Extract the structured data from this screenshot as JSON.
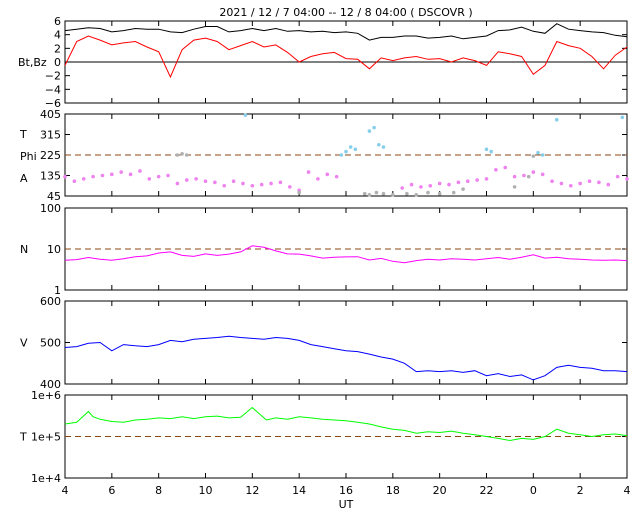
{
  "title": "2021 / 12 /  7   04:00 -- 12 /  8   04:00 ( DSCOVR )",
  "xlabel": "UT",
  "x_ticks": [
    {
      "hour": 4,
      "label": "4"
    },
    {
      "hour": 6,
      "label": "6"
    },
    {
      "hour": 8,
      "label": "8"
    },
    {
      "hour": 10,
      "label": "10"
    },
    {
      "hour": 12,
      "label": "12"
    },
    {
      "hour": 14,
      "label": "14"
    },
    {
      "hour": 16,
      "label": "16"
    },
    {
      "hour": 18,
      "label": "18"
    },
    {
      "hour": 20,
      "label": "20"
    },
    {
      "hour": 22,
      "label": "22"
    },
    {
      "hour": 24,
      "label": "0"
    },
    {
      "hour": 26,
      "label": "2"
    },
    {
      "hour": 28,
      "label": "4"
    }
  ],
  "chart_data": [
    {
      "type": "line",
      "ylabel": "Bt,Bz",
      "ylim": [
        -6,
        6
      ],
      "y_ticks": [
        {
          "v": 6,
          "label": "6"
        },
        {
          "v": 4,
          "label": "4"
        },
        {
          "v": 2,
          "label": "2"
        },
        {
          "v": 0,
          "label": "0"
        },
        {
          "v": -2,
          "label": "−2"
        },
        {
          "v": -4,
          "label": "−4"
        },
        {
          "v": -6,
          "label": "−6"
        }
      ],
      "reference_line": {
        "v": 0,
        "style": "solid",
        "color": "#000000"
      },
      "series": [
        {
          "color": "#000000",
          "x": [
            4,
            4.5,
            5,
            5.5,
            6,
            6.5,
            7,
            7.5,
            8,
            8.5,
            9,
            9.5,
            10,
            10.5,
            11,
            11.5,
            12,
            12.5,
            13,
            13.5,
            14,
            14.5,
            15,
            15.5,
            16,
            16.5,
            17,
            17.5,
            18,
            18.5,
            19,
            19.5,
            20,
            20.5,
            21,
            21.5,
            22,
            22.5,
            23,
            23.5,
            24,
            24.5,
            25,
            25.5,
            26,
            26.5,
            27,
            27.5,
            28
          ],
          "y": [
            4.6,
            4.8,
            5.0,
            4.9,
            4.4,
            4.6,
            4.9,
            4.8,
            4.8,
            4.4,
            4.3,
            4.8,
            5.2,
            5.2,
            4.4,
            4.6,
            4.9,
            4.6,
            4.9,
            4.5,
            4.6,
            4.4,
            4.5,
            4.3,
            4.4,
            4.2,
            3.2,
            3.6,
            3.6,
            3.8,
            3.8,
            3.5,
            3.6,
            3.8,
            3.4,
            3.6,
            3.8,
            4.6,
            4.7,
            5.1,
            4.5,
            4.2,
            5.6,
            4.8,
            4.6,
            4.4,
            4.3,
            3.9,
            3.7
          ]
        },
        {
          "color": "#ff0000",
          "x": [
            4,
            4.5,
            5,
            5.5,
            6,
            6.5,
            7,
            7.5,
            8,
            8.5,
            9,
            9.5,
            10,
            10.5,
            11,
            11.5,
            12,
            12.5,
            13,
            13.5,
            14,
            14.5,
            15,
            15.5,
            16,
            16.5,
            17,
            17.5,
            18,
            18.5,
            19,
            19.5,
            20,
            20.5,
            21,
            21.5,
            22,
            22.5,
            23,
            23.5,
            24,
            24.5,
            25,
            25.5,
            26,
            26.5,
            27,
            27.5,
            28
          ],
          "y": [
            -0.5,
            3.0,
            3.8,
            3.2,
            2.5,
            2.8,
            3.0,
            2.2,
            1.5,
            -2.2,
            1.8,
            3.2,
            3.5,
            3.0,
            1.8,
            2.4,
            3.0,
            2.2,
            2.5,
            1.4,
            0.0,
            0.8,
            1.2,
            1.4,
            0.5,
            0.4,
            -1.0,
            0.6,
            0.2,
            0.6,
            0.8,
            0.4,
            0.5,
            0.0,
            0.6,
            0.2,
            -0.5,
            1.5,
            1.2,
            0.8,
            -1.8,
            -0.5,
            3.0,
            2.4,
            2.0,
            0.8,
            -1.0,
            1.0,
            2.2
          ]
        }
      ]
    },
    {
      "type": "scatter",
      "ylabel_lines": [
        "T",
        "Phi",
        "A"
      ],
      "ylim": [
        45,
        405
      ],
      "y_ticks": [
        {
          "v": 405,
          "label": "405"
        },
        {
          "v": 315,
          "label": "315"
        },
        {
          "v": 225,
          "label": "225"
        },
        {
          "v": 135,
          "label": "135"
        },
        {
          "v": 45,
          "label": "45"
        }
      ],
      "reference_line": {
        "v": 225,
        "style": "dashed",
        "color": "#8b4513"
      },
      "series": [
        {
          "color": "#ee82ee",
          "x": [
            4,
            4.4,
            4.8,
            5.2,
            5.6,
            6.0,
            6.4,
            6.8,
            7.2,
            7.6,
            8.0,
            8.4,
            8.8,
            9.2,
            9.6,
            10.0,
            10.4,
            10.8,
            11.2,
            11.6,
            12.0,
            12.4,
            12.8,
            13.2,
            13.6,
            14.0,
            14.4,
            14.8,
            15.2,
            15.6,
            18.4,
            18.8,
            19.2,
            19.6,
            20.0,
            20.4,
            20.8,
            21.2,
            21.6,
            22.0,
            22.4,
            22.8,
            23.2,
            23.6,
            24.0,
            24.4,
            24.8,
            25.2,
            25.6,
            26.0,
            26.4,
            26.8,
            27.2,
            27.6,
            28.0
          ],
          "y": [
            130,
            110,
            120,
            130,
            135,
            140,
            150,
            140,
            155,
            120,
            130,
            135,
            100,
            115,
            120,
            110,
            105,
            90,
            110,
            100,
            90,
            95,
            100,
            105,
            85,
            70,
            150,
            120,
            140,
            130,
            80,
            95,
            85,
            90,
            100,
            95,
            105,
            110,
            115,
            120,
            160,
            170,
            130,
            135,
            150,
            140,
            110,
            100,
            90,
            100,
            110,
            105,
            95,
            130,
            120
          ]
        },
        {
          "color": "#87ceeb",
          "x": [
            11.7,
            15.8,
            16.0,
            16.2,
            16.4,
            17.0,
            17.2,
            17.4,
            17.6,
            22.0,
            22.2,
            24.2,
            24.4,
            25.0,
            27.8
          ],
          "y": [
            400,
            225,
            240,
            260,
            250,
            330,
            345,
            270,
            260,
            250,
            240,
            235,
            225,
            380,
            390
          ]
        },
        {
          "color": "#b0b0b0",
          "x": [
            8.8,
            9.0,
            9.2,
            14.0,
            16.8,
            17.0,
            17.3,
            17.6,
            18.0,
            18.6,
            19.0,
            19.5,
            20.0,
            20.6,
            21.0,
            23.2,
            23.8,
            24.0
          ],
          "y": [
            225,
            230,
            225,
            60,
            55,
            50,
            60,
            55,
            50,
            55,
            50,
            60,
            55,
            60,
            75,
            85,
            130,
            220
          ]
        }
      ]
    },
    {
      "type": "line",
      "ylabel": "N",
      "scale": "log",
      "ylim": [
        1,
        100
      ],
      "y_ticks": [
        {
          "v": 100,
          "label": "100"
        },
        {
          "v": 10,
          "label": "10"
        },
        {
          "v": 1,
          "label": "1"
        }
      ],
      "reference_line": {
        "v": 10,
        "style": "dashed",
        "color": "#8b4513"
      },
      "series": [
        {
          "color": "#ff00ff",
          "x": [
            4,
            4.5,
            5,
            5.5,
            6,
            6.5,
            7,
            7.5,
            8,
            8.5,
            9,
            9.5,
            10,
            10.5,
            11,
            11.5,
            12,
            12.5,
            13,
            13.5,
            14,
            14.5,
            15,
            15.5,
            16,
            16.5,
            17,
            17.5,
            18,
            18.5,
            19,
            19.5,
            20,
            20.5,
            21,
            21.5,
            22,
            22.5,
            23,
            23.5,
            24,
            24.5,
            25,
            25.5,
            26,
            26.5,
            27,
            27.5,
            28
          ],
          "y": [
            5.3,
            5.5,
            6.2,
            5.6,
            5.3,
            5.8,
            6.5,
            6.8,
            8.0,
            8.5,
            7.0,
            6.6,
            7.6,
            7.0,
            7.5,
            8.5,
            12.0,
            11.0,
            9.0,
            7.6,
            7.5,
            6.8,
            6.0,
            6.3,
            6.4,
            6.5,
            5.4,
            5.9,
            5.0,
            4.6,
            5.2,
            5.6,
            5.4,
            5.8,
            5.6,
            5.4,
            5.8,
            6.2,
            5.6,
            6.3,
            7.2,
            6.0,
            6.3,
            5.8,
            5.6,
            5.4,
            5.3,
            5.4,
            5.2
          ]
        }
      ]
    },
    {
      "type": "line",
      "ylabel": "V",
      "ylim": [
        400,
        600
      ],
      "y_ticks": [
        {
          "v": 600,
          "label": "600"
        },
        {
          "v": 500,
          "label": "500"
        },
        {
          "v": 400,
          "label": "400"
        }
      ],
      "series": [
        {
          "color": "#0000ff",
          "x": [
            4,
            4.5,
            5,
            5.5,
            6,
            6.5,
            7,
            7.5,
            8,
            8.5,
            9,
            9.5,
            10,
            10.5,
            11,
            11.5,
            12,
            12.5,
            13,
            13.5,
            14,
            14.5,
            15,
            15.5,
            16,
            16.5,
            17,
            17.5,
            18,
            18.5,
            19,
            19.5,
            20,
            20.5,
            21,
            21.5,
            22,
            22.5,
            23,
            23.5,
            24,
            24.5,
            25,
            25.5,
            26,
            26.5,
            27,
            27.5,
            28
          ],
          "y": [
            488,
            490,
            498,
            500,
            480,
            495,
            492,
            490,
            495,
            505,
            502,
            508,
            510,
            512,
            515,
            512,
            510,
            508,
            512,
            510,
            505,
            495,
            490,
            485,
            480,
            478,
            472,
            465,
            460,
            450,
            430,
            432,
            430,
            432,
            428,
            432,
            420,
            425,
            418,
            422,
            410,
            420,
            440,
            445,
            440,
            438,
            432,
            432,
            430
          ]
        }
      ]
    },
    {
      "type": "line",
      "ylabel": "T",
      "scale": "log",
      "ylim": [
        10000,
        1000000
      ],
      "y_ticks": [
        {
          "v": 1000000,
          "label": "1e+6"
        },
        {
          "v": 100000,
          "label": "1e+5"
        },
        {
          "v": 10000,
          "label": "1e+4"
        }
      ],
      "reference_line": {
        "v": 100000,
        "style": "dashed",
        "color": "#8b4513"
      },
      "series": [
        {
          "color": "#00ff00",
          "x": [
            4,
            4.5,
            5,
            5.2,
            5.5,
            6,
            6.5,
            7,
            7.5,
            8,
            8.5,
            9,
            9.5,
            10,
            10.5,
            11,
            11.5,
            12,
            12.3,
            12.6,
            13,
            13.5,
            14,
            14.5,
            15,
            15.5,
            16,
            16.5,
            17,
            17.5,
            18,
            18.5,
            19,
            19.5,
            20,
            20.5,
            21,
            21.5,
            22,
            22.5,
            23,
            23.5,
            24,
            24.5,
            25,
            25.5,
            26,
            26.5,
            27,
            27.5,
            28
          ],
          "y": [
            200000,
            220000,
            400000,
            300000,
            260000,
            230000,
            220000,
            250000,
            260000,
            280000,
            270000,
            300000,
            270000,
            300000,
            310000,
            280000,
            290000,
            500000,
            350000,
            250000,
            280000,
            260000,
            300000,
            280000,
            260000,
            250000,
            240000,
            220000,
            200000,
            170000,
            150000,
            140000,
            120000,
            130000,
            125000,
            135000,
            120000,
            110000,
            100000,
            90000,
            80000,
            90000,
            85000,
            100000,
            150000,
            120000,
            110000,
            100000,
            110000,
            115000,
            105000
          ]
        }
      ]
    }
  ]
}
